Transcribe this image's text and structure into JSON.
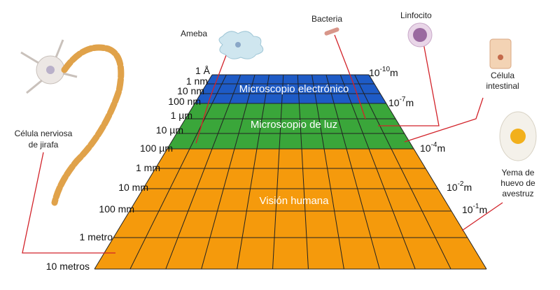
{
  "scale_left": [
    "1 Å",
    "1 nm",
    "10 nm",
    "100 nm",
    "1 µm",
    "10 µm",
    "100 µm",
    "1 mm",
    "10 mm",
    "100 mm",
    "1 metro",
    "10 metros"
  ],
  "scale_right": [
    {
      "base": "10",
      "exponent": "-10",
      "unit": "m"
    },
    {
      "base": "10",
      "exponent": "-7",
      "unit": "m"
    },
    {
      "base": "10",
      "exponent": "-4",
      "unit": "m"
    },
    {
      "base": "10",
      "exponent": "-2",
      "unit": "m"
    },
    {
      "base": "10",
      "exponent": "-1",
      "unit": "m"
    }
  ],
  "bands": [
    "Microscopio electrónico",
    "Microscopio de luz",
    "Visión humana"
  ],
  "organisms": {
    "ameba": "Ameba",
    "bacteria": "Bacteria",
    "linfocito": "Linfocito",
    "celula_intestinal": [
      "Célula",
      "intestinal"
    ],
    "yema": [
      "Yema de",
      "huevo de",
      "avestruz"
    ],
    "nerviosa": [
      "Célula nerviosa",
      "de jirafa"
    ]
  }
}
